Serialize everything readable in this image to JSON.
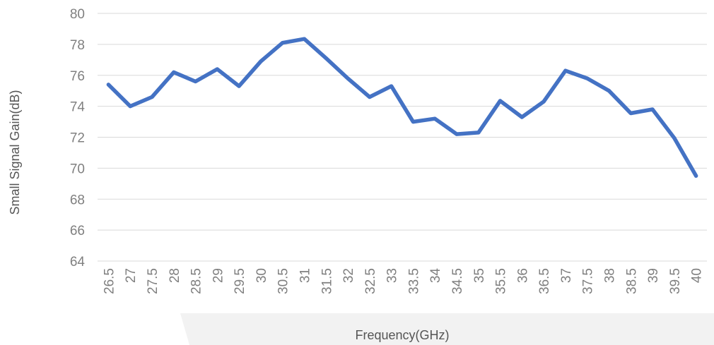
{
  "chart_data": {
    "type": "line",
    "title": "",
    "xlabel": "Frequency(GHz)",
    "ylabel": "Small Signal Gain(dB)",
    "ylim": [
      64,
      80
    ],
    "yticks": [
      64,
      66,
      68,
      70,
      72,
      74,
      76,
      78,
      80
    ],
    "grid": true,
    "legend": "none",
    "x": [
      "26.5",
      "27",
      "27.5",
      "28",
      "28.5",
      "29",
      "29.5",
      "30",
      "30.5",
      "31",
      "31.5",
      "32",
      "32.5",
      "33",
      "33.5",
      "34",
      "34.5",
      "35",
      "35.5",
      "36",
      "36.5",
      "37",
      "37.5",
      "38",
      "38.5",
      "39",
      "39.5",
      "40"
    ],
    "series": [
      {
        "color": "#4472c4",
        "values": [
          75.4,
          74.0,
          74.6,
          76.2,
          75.6,
          76.4,
          75.3,
          76.9,
          78.1,
          78.35,
          77.1,
          75.8,
          74.6,
          75.3,
          73.0,
          73.2,
          72.2,
          72.3,
          74.35,
          73.3,
          74.3,
          76.3,
          75.8,
          75.0,
          73.55,
          73.8,
          71.95,
          69.5
        ]
      }
    ]
  }
}
